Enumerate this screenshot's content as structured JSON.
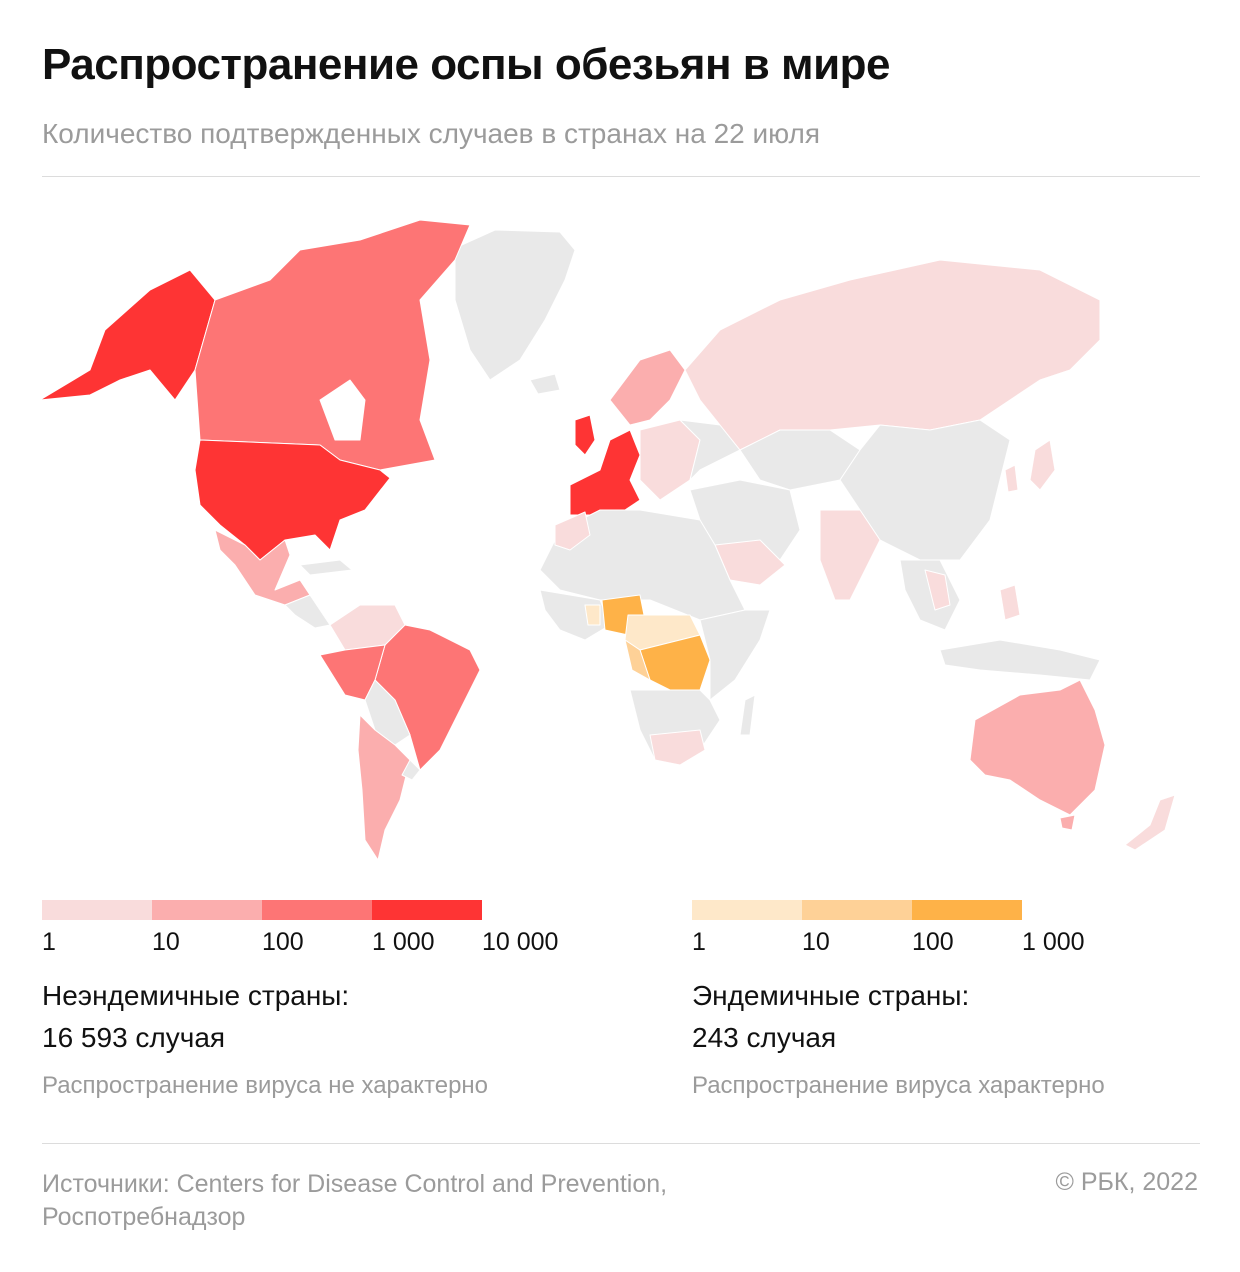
{
  "header": {
    "title": "Распространение оспы обезьян в мире",
    "subtitle": "Количество подтвержденных случаев в странах на 22 июля"
  },
  "legend_non_endemic": {
    "colors": [
      "#f9dcdc",
      "#fbaeae",
      "#fd7575",
      "#fe3434"
    ],
    "ticks": [
      "1",
      "10",
      "100",
      "1 000",
      "10 000"
    ],
    "title": "Неэндемичные страны:",
    "count": "16 593 случая",
    "note": "Распространение вируса не характерно"
  },
  "legend_endemic": {
    "colors": [
      "#fee8c9",
      "#fed197",
      "#feb248"
    ],
    "ticks": [
      "1",
      "10",
      "100",
      "1 000"
    ],
    "title": "Эндемичные страны:",
    "count": "243 случая",
    "note": "Распространение вируса характерно"
  },
  "map": {
    "no_data_color": "#e9e9e9",
    "regions": [
      {
        "name": "Аляска / США",
        "tier": "n4"
      },
      {
        "name": "Канада",
        "tier": "n3"
      },
      {
        "name": "США",
        "tier": "n4"
      },
      {
        "name": "Мексика",
        "tier": "n2"
      },
      {
        "name": "Бразилия",
        "tier": "n3"
      },
      {
        "name": "Перу",
        "tier": "n3"
      },
      {
        "name": "Аргентина",
        "tier": "n2"
      },
      {
        "name": "Гренландия",
        "tier": "none"
      },
      {
        "name": "Западная Европа",
        "tier": "n4"
      },
      {
        "name": "Россия",
        "tier": "n1"
      },
      {
        "name": "Австралия",
        "tier": "n2"
      },
      {
        "name": "Нигерия",
        "tier": "e3"
      },
      {
        "name": "ДР Конго",
        "tier": "e3"
      }
    ]
  },
  "footer": {
    "sources": "Источники: Centers for Disease Control and Prevention, Роспотребнадзор",
    "copyright": "© РБК, 2022"
  }
}
